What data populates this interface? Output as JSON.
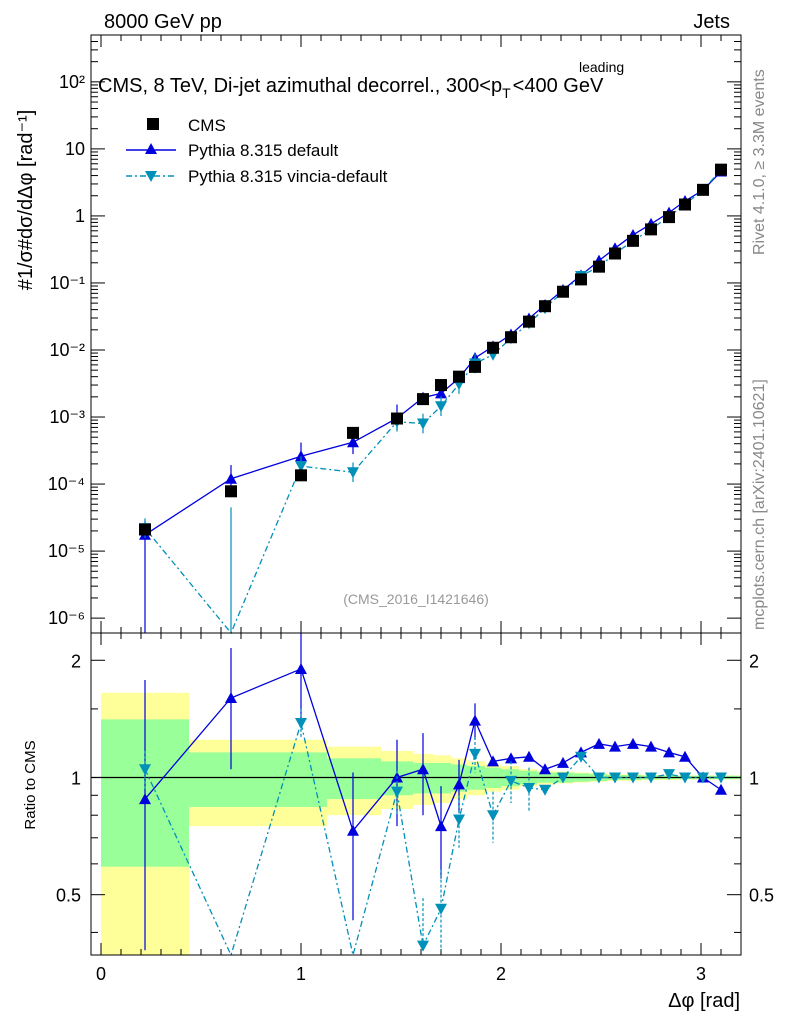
{
  "header": {
    "left": "8000 GeV pp",
    "right": "Jets"
  },
  "side_labels": {
    "upper": "Rivet 4.1.0, ≥ 3.3M events",
    "lower": "mcplots.cern.ch [arXiv:2401.10621]"
  },
  "chart_data": {
    "type": "scatter",
    "title_main": "CMS, 8 TeV, Di-jet azimuthal decorrel., 300<p",
    "title_sub": "T",
    "title_sup": "leading",
    "title_end": "<400 GeV",
    "analysis_tag": "(CMS_2016_I1421646)",
    "xlabel": "Δφ [rad]",
    "ylabel_upper": "#1/σ#dσ/dΔφ [rad⁻¹]",
    "ylabel_lower": "Ratio to CMS",
    "xlim": [
      -0.05,
      3.2
    ],
    "ylim_upper": [
      6e-07,
      500
    ],
    "ylim_lower": [
      0.35,
      2.35
    ],
    "x_ticks": [
      "0",
      "1",
      "2",
      "3"
    ],
    "y_ticks_upper": [
      "10⁻⁶",
      "10⁻⁵",
      "10⁻⁴",
      "10⁻³",
      "10⁻²",
      "10⁻¹",
      "1",
      "10",
      "10²"
    ],
    "y_ticks_lower": [
      "0.5",
      "1",
      "2"
    ],
    "legend": {
      "data": "CMS",
      "mc1": "Pythia 8.315 default",
      "mc2": "Pythia 8.315 vincia-default"
    },
    "colors": {
      "data": "#000000",
      "mc1": "#0000dd",
      "mc2": "#0090b8",
      "band_inner": "#99ff99",
      "band_outer": "#ffff99"
    },
    "x": [
      0.22,
      0.65,
      1.0,
      1.26,
      1.48,
      1.61,
      1.7,
      1.79,
      1.87,
      1.96,
      2.05,
      2.14,
      2.22,
      2.31,
      2.4,
      2.49,
      2.57,
      2.66,
      2.75,
      2.84,
      2.92,
      3.01,
      3.1
    ],
    "data_values": [
      2.1e-05,
      7.8e-05,
      0.000135,
      0.00058,
      0.00095,
      0.00185,
      0.003,
      0.004,
      0.0056,
      0.0108,
      0.0155,
      0.0265,
      0.045,
      0.074,
      0.113,
      0.175,
      0.275,
      0.425,
      0.63,
      0.96,
      1.48,
      2.45,
      4.9
    ],
    "mc1_values": [
      1.75e-05,
      0.00012,
      0.00026,
      0.00042,
      0.00096,
      0.00195,
      0.00225,
      0.0038,
      0.0076,
      0.0113,
      0.017,
      0.0295,
      0.047,
      0.079,
      0.13,
      0.215,
      0.33,
      0.52,
      0.76,
      1.12,
      1.67,
      2.42,
      4.6
    ],
    "mc2_values": [
      2.2e-05,
      1e-07,
      0.000185,
      0.00015,
      0.00085,
      0.0008,
      0.00145,
      0.0031,
      0.0063,
      0.0085,
      0.015,
      0.025,
      0.042,
      0.074,
      0.127,
      0.175,
      0.275,
      0.425,
      0.63,
      0.98,
      1.48,
      2.45,
      4.85
    ],
    "mc1_ratio": [
      0.88,
      1.6,
      1.9,
      0.73,
      1.0,
      1.05,
      0.75,
      0.96,
      1.4,
      1.1,
      1.12,
      1.13,
      1.05,
      1.09,
      1.16,
      1.22,
      1.2,
      1.22,
      1.2,
      1.16,
      1.13,
      1.0,
      0.93
    ],
    "mc2_ratio": [
      1.05,
      0.25,
      1.38,
      0.26,
      0.92,
      0.37,
      0.46,
      0.78,
      1.15,
      0.8,
      0.98,
      0.94,
      0.93,
      1.0,
      1.13,
      1.0,
      1.0,
      1.0,
      1.0,
      1.02,
      1.0,
      1.0,
      1.0
    ],
    "band_edges": [
      0.0,
      0.44,
      1.13,
      1.4,
      1.56,
      1.66,
      1.75,
      1.83,
      1.92,
      2.0,
      2.09,
      2.18,
      2.27,
      2.36,
      2.44,
      2.53,
      2.62,
      2.7,
      2.79,
      2.88,
      2.97,
      3.06,
      3.2
    ],
    "band_inner_halfwidth": [
      0.41,
      0.16,
      0.12,
      0.1,
      0.09,
      0.09,
      0.08,
      0.07,
      0.06,
      0.05,
      0.04,
      0.03,
      0.03,
      0.025,
      0.02,
      0.015,
      0.015,
      0.012,
      0.01,
      0.01,
      0.01,
      0.01
    ],
    "band_outer_halfwidth": [
      0.65,
      0.25,
      0.2,
      0.17,
      0.15,
      0.14,
      0.12,
      0.1,
      0.08,
      0.07,
      0.05,
      0.04,
      0.035,
      0.03,
      0.025,
      0.02,
      0.02,
      0.015,
      0.015,
      0.012,
      0.012,
      0.012
    ]
  }
}
